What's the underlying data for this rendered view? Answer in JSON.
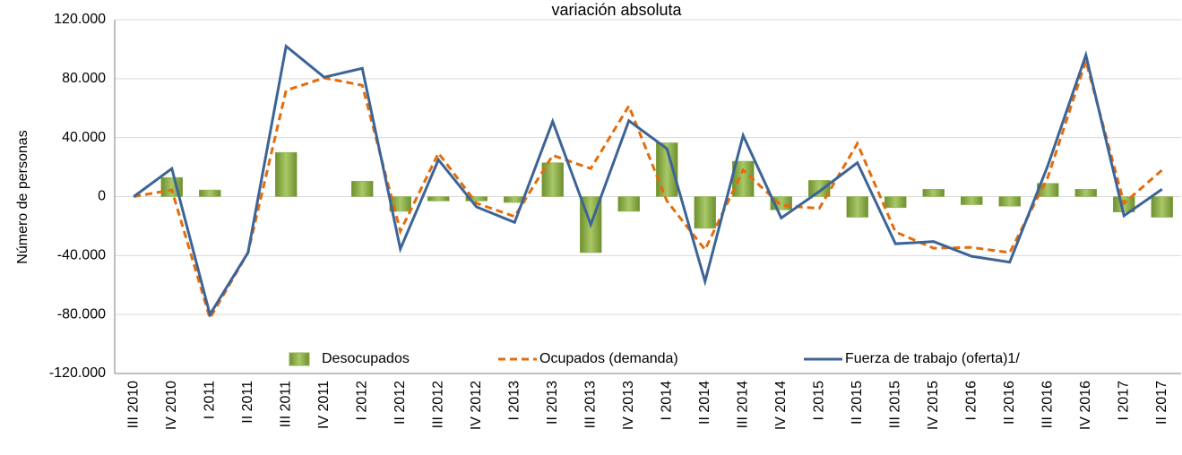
{
  "chart_data": {
    "type": "combo",
    "title": "variación absoluta",
    "y_label": "Número de personas",
    "categories": [
      "III 2010",
      "IV 2010",
      "I 2011",
      "II 2011",
      "III 2011",
      "IV 2011",
      "I 2012",
      "II 2012",
      "III 2012",
      "IV 2012",
      "I 2013",
      "II 2013",
      "III 2013",
      "IV 2013",
      "I 2014",
      "II 2014",
      "III 2014",
      "IV 2014",
      "I 2015",
      "II 2015",
      "III 2015",
      "IV 2015",
      "I 2016",
      "II 2016",
      "III 2016",
      "IV 2016",
      "I 2017",
      "II 2017"
    ],
    "series": [
      {
        "name": "Desocupados",
        "type": "bar",
        "color": "#8db04a",
        "values": [
          0,
          13000,
          4500,
          0,
          30000,
          0,
          10500,
          -10000,
          -3000,
          -3000,
          -4000,
          23000,
          -38000,
          -10000,
          36500,
          -21500,
          24000,
          -9000,
          11000,
          -14000,
          -7500,
          5000,
          -5500,
          -6500,
          9000,
          5000,
          -10500,
          -14000
        ]
      },
      {
        "name": "Ocupados (demanda)",
        "type": "line",
        "line_style": "dashed",
        "color": "#e46c0a",
        "values": [
          0,
          4500,
          -82500,
          -38000,
          72000,
          80500,
          75500,
          -23500,
          29500,
          -4500,
          -13500,
          28000,
          19000,
          61500,
          -3000,
          -36000,
          18000,
          -6000,
          -8000,
          36000,
          -24000,
          -35000,
          -34500,
          -38000,
          13000,
          92000,
          -4500,
          18000
        ]
      },
      {
        "name": "Fuerza de trabajo (oferta)1/",
        "type": "line",
        "line_style": "solid",
        "color": "#3c6496",
        "values": [
          0,
          19000,
          -80000,
          -38000,
          102000,
          81000,
          87000,
          -35500,
          25000,
          -7000,
          -17500,
          51000,
          -19000,
          51500,
          32500,
          -57500,
          41500,
          -14500,
          3500,
          23000,
          -32000,
          -30500,
          -40500,
          -44500,
          21000,
          96000,
          -13000,
          5000
        ]
      }
    ],
    "ylim": [
      -120000,
      120000
    ],
    "yticks": [
      {
        "value": -120000,
        "label": "-120.000"
      },
      {
        "value": -80000,
        "label": "-80.000"
      },
      {
        "value": -40000,
        "label": "-40.000"
      },
      0,
      {
        "value": 40000,
        "label": "40.000"
      },
      {
        "value": 80000,
        "label": "80.000"
      },
      {
        "value": 120000,
        "label": "120.000"
      }
    ],
    "grid": true,
    "legend": "bottom"
  }
}
